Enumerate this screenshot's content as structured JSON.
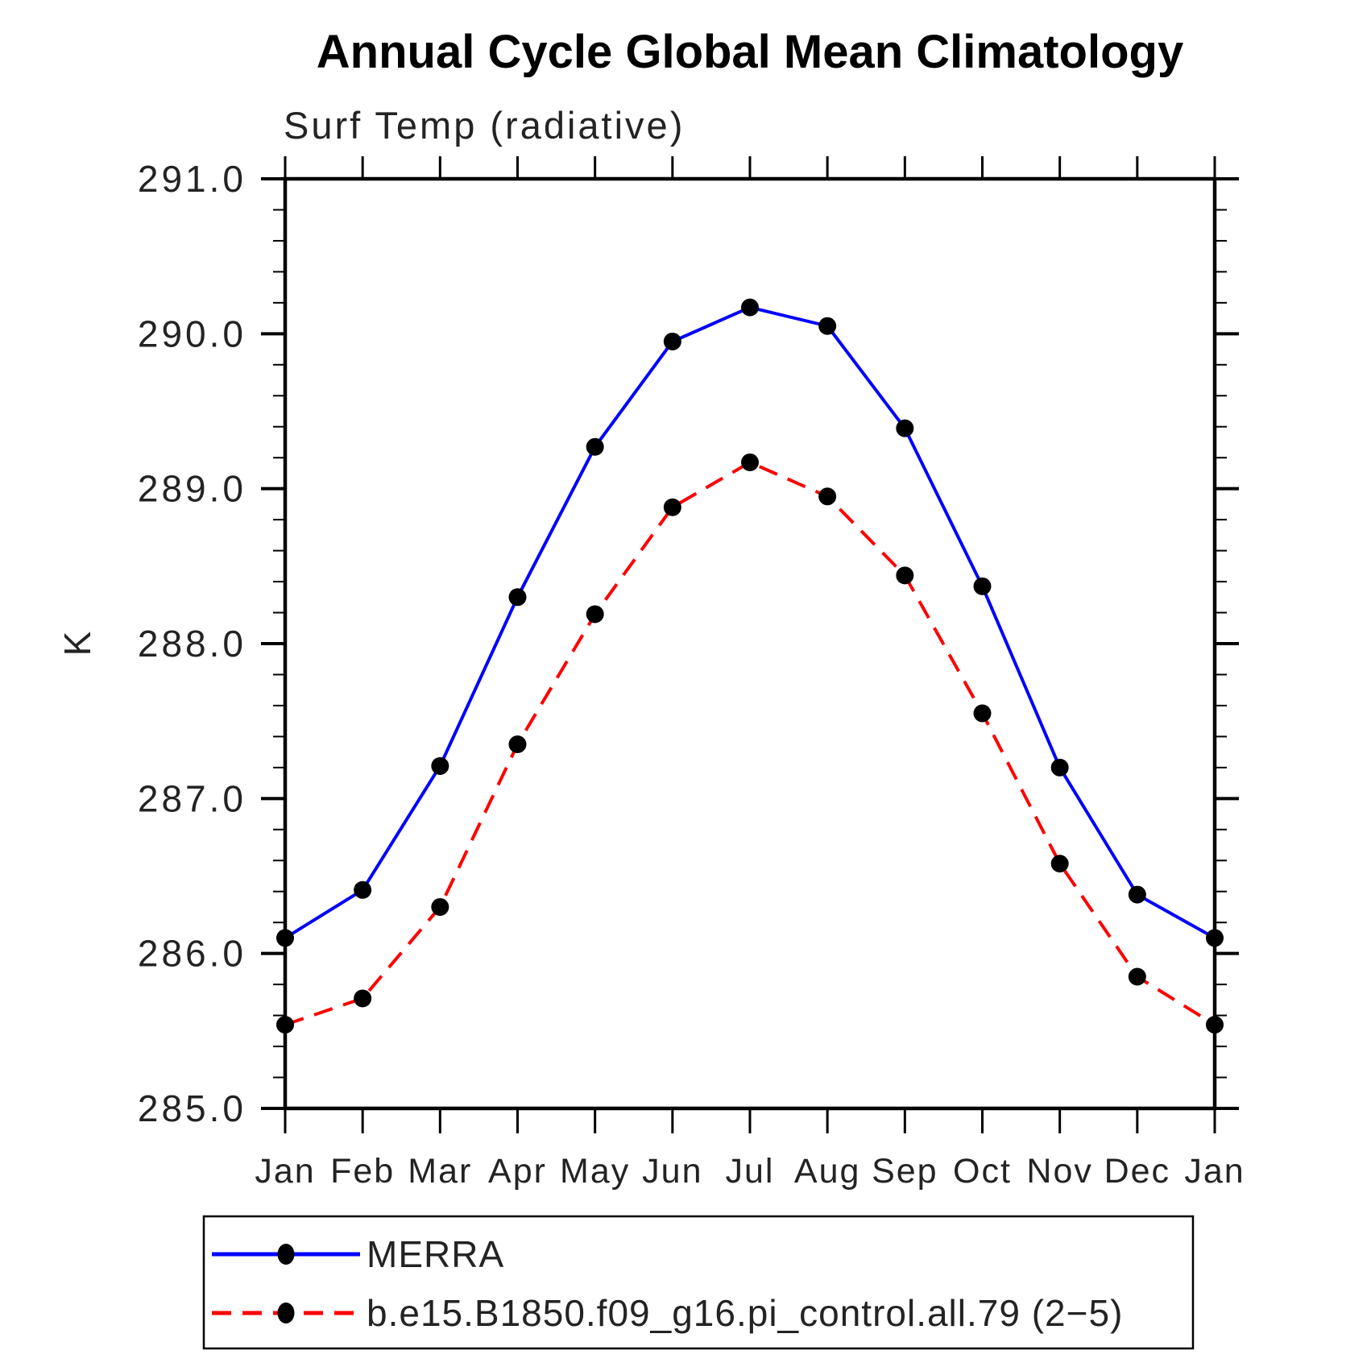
{
  "chart_data": {
    "type": "line",
    "title": "Annual Cycle Global Mean Climatology",
    "subtitle": "Surf Temp (radiative)",
    "ylabel": "K",
    "xlabel": "",
    "categories": [
      "Jan",
      "Feb",
      "Mar",
      "Apr",
      "May",
      "Jun",
      "Jul",
      "Aug",
      "Sep",
      "Oct",
      "Nov",
      "Dec",
      "Jan"
    ],
    "ylim": [
      285.0,
      291.0
    ],
    "y_major_step": 1.0,
    "y_minor_step": 0.2,
    "y_tick_labels": [
      "285.0",
      "286.0",
      "287.0",
      "288.0",
      "289.0",
      "290.0",
      "291.0"
    ],
    "grid": false,
    "legend_position": "bottom-left",
    "axis_color": "#000000",
    "marker_color": "#000000",
    "series": [
      {
        "name": "MERRA",
        "color": "#0000ff",
        "line_style": "solid",
        "marker": "circle",
        "values": [
          286.1,
          286.41,
          287.21,
          288.3,
          289.27,
          289.95,
          290.17,
          290.05,
          289.39,
          288.37,
          287.2,
          286.38,
          286.1
        ]
      },
      {
        "name": "b.e15.B1850.f09_g16.pi_control.all.79 (2−5)",
        "color": "#ff0000",
        "line_style": "dashed",
        "marker": "circle",
        "values": [
          285.54,
          285.71,
          286.3,
          287.35,
          288.19,
          288.88,
          289.17,
          288.95,
          288.44,
          287.55,
          286.58,
          285.85,
          285.54
        ]
      }
    ]
  }
}
